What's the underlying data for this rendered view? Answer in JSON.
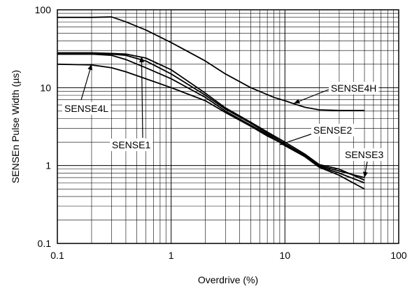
{
  "chart_data": {
    "type": "line",
    "title": "",
    "xlabel": "Overdrive (%)",
    "ylabel": "SENSEn Pulse Width (µs)",
    "xscale": "log",
    "yscale": "log",
    "xlim": [
      0.1,
      100
    ],
    "ylim": [
      0.1,
      100
    ],
    "grid": true,
    "x_ticks": [
      {
        "value": 0.1,
        "label": "0.1"
      },
      {
        "value": 1,
        "label": "1"
      },
      {
        "value": 10,
        "label": "10"
      },
      {
        "value": 100,
        "label": "100"
      }
    ],
    "y_ticks": [
      {
        "value": 0.1,
        "label": "0.1"
      },
      {
        "value": 1,
        "label": "1"
      },
      {
        "value": 10,
        "label": "10"
      },
      {
        "value": 100,
        "label": "100"
      }
    ],
    "series": [
      {
        "name": "SENSE4H",
        "x": [
          0.1,
          0.2,
          0.3,
          0.4,
          0.6,
          1,
          2,
          3,
          5,
          8,
          10,
          12,
          15,
          20,
          30,
          50
        ],
        "y": [
          80,
          80,
          81,
          70,
          55,
          38,
          22,
          15,
          10,
          7.5,
          6.8,
          6.2,
          5.6,
          5.2,
          5.1,
          5.1
        ]
      },
      {
        "name": "SENSE4L",
        "x": [
          0.1,
          0.2,
          0.3,
          0.4,
          0.6,
          1,
          2,
          3,
          5,
          7,
          10,
          15,
          20,
          30,
          50
        ],
        "y": [
          20,
          19.6,
          18,
          16,
          13,
          10,
          6.8,
          4.8,
          3.2,
          2.4,
          1.85,
          1.3,
          0.95,
          0.75,
          0.5
        ]
      },
      {
        "name": "SENSE1",
        "x": [
          0.1,
          0.2,
          0.3,
          0.4,
          0.6,
          1,
          2,
          3,
          5,
          7,
          10,
          15,
          20,
          30,
          50
        ],
        "y": [
          27,
          27,
          26,
          23,
          18,
          13,
          7.5,
          5,
          3.3,
          2.5,
          1.8,
          1.3,
          0.97,
          0.8,
          0.6
        ]
      },
      {
        "name": "SENSE2",
        "x": [
          0.1,
          0.2,
          0.3,
          0.4,
          0.6,
          1,
          2,
          3,
          5,
          7,
          10,
          15,
          20,
          30,
          50
        ],
        "y": [
          27,
          27,
          27,
          26,
          22,
          15,
          8,
          5.3,
          3.5,
          2.6,
          1.9,
          1.35,
          1.0,
          0.85,
          0.7
        ]
      },
      {
        "name": "SENSE3",
        "x": [
          0.1,
          0.2,
          0.3,
          0.4,
          0.6,
          1,
          2,
          3,
          5,
          7,
          10,
          15,
          20,
          30,
          50
        ],
        "y": [
          28,
          28,
          27.5,
          27,
          24,
          17,
          8.5,
          5.5,
          3.6,
          2.7,
          2.0,
          1.4,
          1.03,
          0.9,
          0.65
        ]
      }
    ],
    "annotations": [
      {
        "text": "SENSE4H",
        "points_to": [
          12,
          6.3
        ]
      },
      {
        "text": "SENSE4L",
        "points_to": [
          0.2,
          20
        ]
      },
      {
        "text": "SENSE1",
        "points_to": [
          0.55,
          25
        ]
      },
      {
        "text": "SENSE2",
        "points_to": [
          9,
          1.85
        ]
      },
      {
        "text": "SENSE3",
        "points_to": [
          50,
          0.7
        ]
      }
    ],
    "colors": {
      "line": "#000000",
      "grid": "#000000",
      "background": "#ffffff"
    }
  }
}
